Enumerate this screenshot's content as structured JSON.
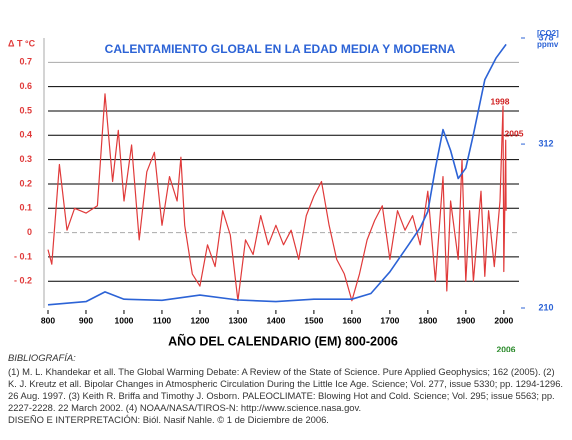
{
  "chart_data": {
    "type": "line",
    "title": "CALENTAMIENTO GLOBAL EN LA EDAD MEDIA Y MODERNA",
    "x_label": "AÑO DEL CALENDARIO (EM) 800-2006",
    "y_label": "Δ T °C",
    "y2_label": [
      "[CO2]",
      "ppmv"
    ],
    "annotations": [
      "1998",
      "2005",
      "2006"
    ],
    "xlim": [
      800,
      2040
    ],
    "xticks": [
      800,
      900,
      1000,
      1100,
      1200,
      1300,
      1400,
      1500,
      1600,
      1700,
      1800,
      1900,
      2000
    ],
    "ylim": [
      -0.31,
      0.8
    ],
    "yticks": [
      0.7,
      0.6,
      0.5,
      0.4,
      0.3,
      0.2,
      0.1,
      0,
      {
        "value": -0.1,
        "label": "- 0.1"
      },
      {
        "value": -0.2,
        "label": "- 0.2"
      }
    ],
    "y2lim": [
      210,
      378
    ],
    "y2ticks": [
      378,
      312,
      210
    ],
    "grid": true,
    "series": [
      {
        "name": "ΔT",
        "color": "#e03a3a",
        "axis": "y",
        "x": [
          800,
          810,
          830,
          850,
          870,
          900,
          930,
          950,
          970,
          985,
          1000,
          1020,
          1040,
          1060,
          1080,
          1100,
          1120,
          1140,
          1150,
          1160,
          1180,
          1200,
          1220,
          1240,
          1260,
          1280,
          1300,
          1320,
          1340,
          1360,
          1380,
          1400,
          1420,
          1440,
          1460,
          1480,
          1500,
          1520,
          1540,
          1560,
          1580,
          1600,
          1620,
          1640,
          1660,
          1680,
          1700,
          1720,
          1740,
          1760,
          1780,
          1800,
          1820,
          1840,
          1850,
          1860,
          1880,
          1890,
          1900,
          1910,
          1920,
          1940,
          1950,
          1960,
          1975,
          1990,
          1998,
          2000,
          2003,
          2005,
          2006
        ],
        "values": [
          -0.07,
          -0.13,
          0.28,
          0.01,
          0.1,
          0.08,
          0.11,
          0.57,
          0.21,
          0.42,
          0.13,
          0.36,
          -0.03,
          0.25,
          0.33,
          0.03,
          0.23,
          0.13,
          0.31,
          0.03,
          -0.17,
          -0.22,
          -0.05,
          -0.14,
          0.09,
          -0.01,
          -0.28,
          -0.03,
          -0.09,
          0.07,
          -0.05,
          0.03,
          -0.05,
          0.01,
          -0.11,
          0.07,
          0.15,
          0.21,
          0.03,
          -0.11,
          -0.17,
          -0.28,
          -0.17,
          -0.03,
          0.05,
          0.11,
          -0.11,
          0.09,
          0.01,
          0.07,
          -0.05,
          0.17,
          -0.2,
          0.23,
          -0.24,
          0.13,
          -0.11,
          0.3,
          -0.2,
          0.09,
          -0.2,
          0.17,
          -0.18,
          0.09,
          -0.14,
          0.13,
          0.52,
          -0.16,
          0.13,
          0.38,
          0.09
        ]
      },
      {
        "name": "CO2",
        "color": "#2c63d6",
        "axis": "y2",
        "x": [
          800,
          900,
          950,
          1000,
          1100,
          1200,
          1300,
          1400,
          1500,
          1600,
          1650,
          1700,
          1750,
          1780,
          1800,
          1820,
          1840,
          1860,
          1880,
          1900,
          1920,
          1950,
          1980,
          2006
        ],
        "values": [
          212,
          214,
          220,
          215.5,
          214.8,
          218,
          215,
          214,
          215.5,
          215.5,
          219,
          232.5,
          249.6,
          260,
          270,
          297,
          321,
          308,
          290.6,
          297,
          318,
          352,
          365.7,
          374
        ]
      }
    ]
  },
  "bibliography": {
    "heading": "BIBLIOGRAFÍA:",
    "references": "(1) M. L. Khandekar et all. The Global Warming Debate: A Review of the State of Science. Pure Applied Geophysics; 162 (2005). (2) K. J. Kreutz et all. Bipolar Changes in Atmospheric Circulation During the Little Ice Age. Science; Vol. 277, issue 5330; pp. 1294-1296. 26 Aug. 1997. (3) Keith R. Briffa and Timothy J. Osborn. PALEOCLIMATE: Blowing Hot and Cold. Science; Vol. 295; issue 5563; pp. 2227-2228. 22 March 2002. (4) NOAA/NASA/TIROS-N: http://www.science.nasa.gov.",
    "credits": "DISEÑO E INTERPRETACIÓN: Biól. Nasif Nahle. © 1 de Diciembre de 2006."
  }
}
